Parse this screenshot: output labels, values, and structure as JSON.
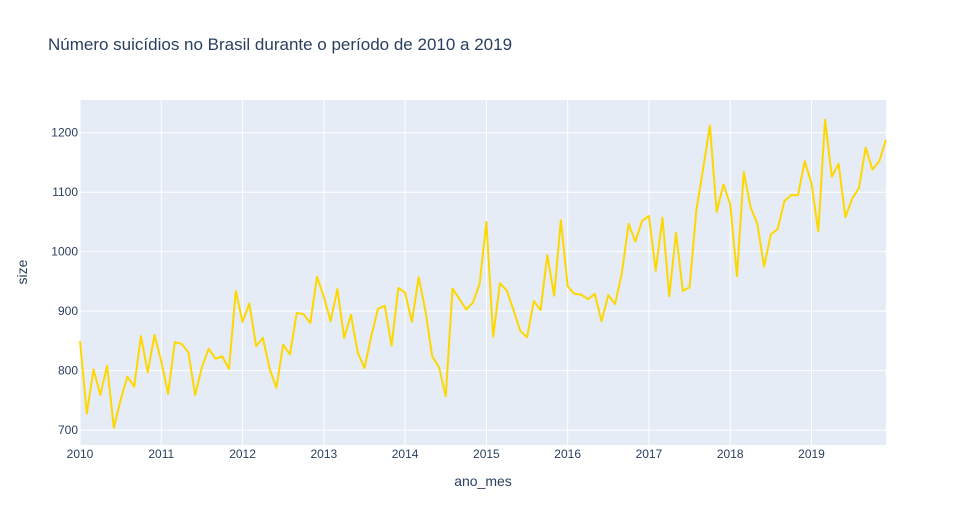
{
  "chart_data": {
    "type": "line",
    "title": "Número suicídios no Brasil durante o período de 2010 a 2019",
    "xlabel": "ano_mes",
    "ylabel": "size",
    "x_tick_labels": [
      "2010",
      "2011",
      "2012",
      "2013",
      "2014",
      "2015",
      "2016",
      "2017",
      "2018",
      "2019"
    ],
    "y_ticks": [
      700,
      800,
      900,
      1000,
      1100,
      1200
    ],
    "xlim": [
      "2010-01",
      "2019-12"
    ],
    "ylim": [
      675,
      1255
    ],
    "grid": true,
    "legend": "none",
    "colors": {
      "plot_bg": "#e5ecf6",
      "line": "#ffd700",
      "grid": "#ffffff",
      "text": "#2a3f5f"
    },
    "series": [
      {
        "x": [
          "2010-01",
          "2010-02",
          "2010-03",
          "2010-04",
          "2010-05",
          "2010-06",
          "2010-07",
          "2010-08",
          "2010-09",
          "2010-10",
          "2010-11",
          "2010-12",
          "2011-01",
          "2011-02",
          "2011-03",
          "2011-04",
          "2011-05",
          "2011-06",
          "2011-07",
          "2011-08",
          "2011-09",
          "2011-10",
          "2011-11",
          "2011-12",
          "2012-01",
          "2012-02",
          "2012-03",
          "2012-04",
          "2012-05",
          "2012-06",
          "2012-07",
          "2012-08",
          "2012-09",
          "2012-10",
          "2012-11",
          "2012-12",
          "2013-01",
          "2013-02",
          "2013-03",
          "2013-04",
          "2013-05",
          "2013-06",
          "2013-07",
          "2013-08",
          "2013-09",
          "2013-10",
          "2013-11",
          "2013-12",
          "2014-01",
          "2014-02",
          "2014-03",
          "2014-04",
          "2014-05",
          "2014-06",
          "2014-07",
          "2014-08",
          "2014-09",
          "2014-10",
          "2014-11",
          "2014-12",
          "2015-01",
          "2015-02",
          "2015-03",
          "2015-04",
          "2015-05",
          "2015-06",
          "2015-07",
          "2015-08",
          "2015-09",
          "2015-10",
          "2015-11",
          "2015-12",
          "2016-01",
          "2016-02",
          "2016-03",
          "2016-04",
          "2016-05",
          "2016-06",
          "2016-07",
          "2016-08",
          "2016-09",
          "2016-10",
          "2016-11",
          "2016-12",
          "2017-01",
          "2017-02",
          "2017-03",
          "2017-04",
          "2017-05",
          "2017-06",
          "2017-07",
          "2017-08",
          "2017-09",
          "2017-10",
          "2017-11",
          "2017-12",
          "2018-01",
          "2018-02",
          "2018-03",
          "2018-04",
          "2018-05",
          "2018-06",
          "2018-07",
          "2018-08",
          "2018-09",
          "2018-10",
          "2018-11",
          "2018-12",
          "2019-01",
          "2019-02",
          "2019-03",
          "2019-04",
          "2019-05",
          "2019-06",
          "2019-07",
          "2019-08",
          "2019-09",
          "2019-10",
          "2019-11",
          "2019-12"
        ],
        "y": [
          850,
          728,
          802,
          759,
          808,
          704,
          751,
          790,
          773,
          858,
          797,
          860,
          816,
          761,
          848,
          845,
          831,
          759,
          806,
          837,
          820,
          824,
          803,
          934,
          882,
          913,
          841,
          855,
          803,
          771,
          844,
          827,
          897,
          895,
          880,
          958,
          924,
          883,
          937,
          855,
          894,
          831,
          804,
          858,
          904,
          909,
          842,
          939,
          931,
          882,
          957,
          901,
          824,
          806,
          757,
          938,
          921,
          903,
          914,
          946,
          1050,
          857,
          947,
          935,
          902,
          867,
          856,
          917,
          902,
          994,
          926,
          1053,
          942,
          929,
          928,
          920,
          929,
          883,
          927,
          912,
          964,
          1047,
          1017,
          1052,
          1060,
          968,
          1057,
          925,
          1032,
          934,
          940,
          1070,
          1139,
          1212,
          1067,
          1113,
          1080,
          959,
          1134,
          1075,
          1047,
          975,
          1029,
          1038,
          1085,
          1095,
          1095,
          1152,
          1115,
          1034,
          1222,
          1126,
          1148,
          1058,
          1089,
          1107,
          1175,
          1138,
          1152,
          1188
        ]
      }
    ]
  }
}
